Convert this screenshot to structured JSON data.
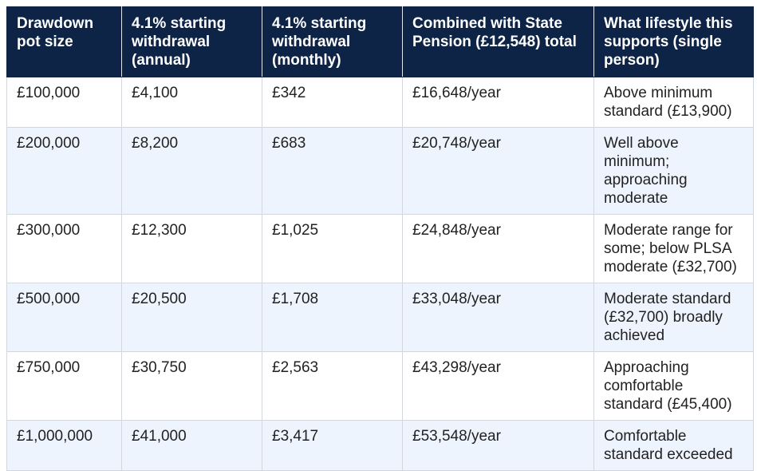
{
  "table": {
    "headers": [
      "Drawdown pot size",
      "4.1% starting withdrawal (annual)",
      "4.1% starting withdrawal (monthly)",
      "Combined with State Pension (£12,548) total",
      "What lifestyle this supports (single person)"
    ],
    "rows": [
      [
        "£100,000",
        "£4,100",
        "£342",
        "£16,648/year",
        "Above minimum standard (£13,900)"
      ],
      [
        "£200,000",
        "£8,200",
        "£683",
        "£20,748/year",
        "Well above minimum; approaching moderate"
      ],
      [
        "£300,000",
        "£12,300",
        "£1,025",
        "£24,848/year",
        "Moderate range for some; below PLSA moderate (£32,700)"
      ],
      [
        "£500,000",
        "£20,500",
        "£1,708",
        "£33,048/year",
        "Moderate standard (£32,700) broadly achieved"
      ],
      [
        "£750,000",
        "£30,750",
        "£2,563",
        "£43,298/year",
        "Approaching comfortable standard (£45,400)"
      ],
      [
        "£1,000,000",
        "£41,000",
        "£3,417",
        "£53,548/year",
        "Comfortable standard exceeded"
      ]
    ],
    "colors": {
      "header_bg": "#0d2447",
      "header_text": "#ffffff",
      "row_alt_bg": "#eef4fd",
      "border": "#d3d7de"
    }
  }
}
